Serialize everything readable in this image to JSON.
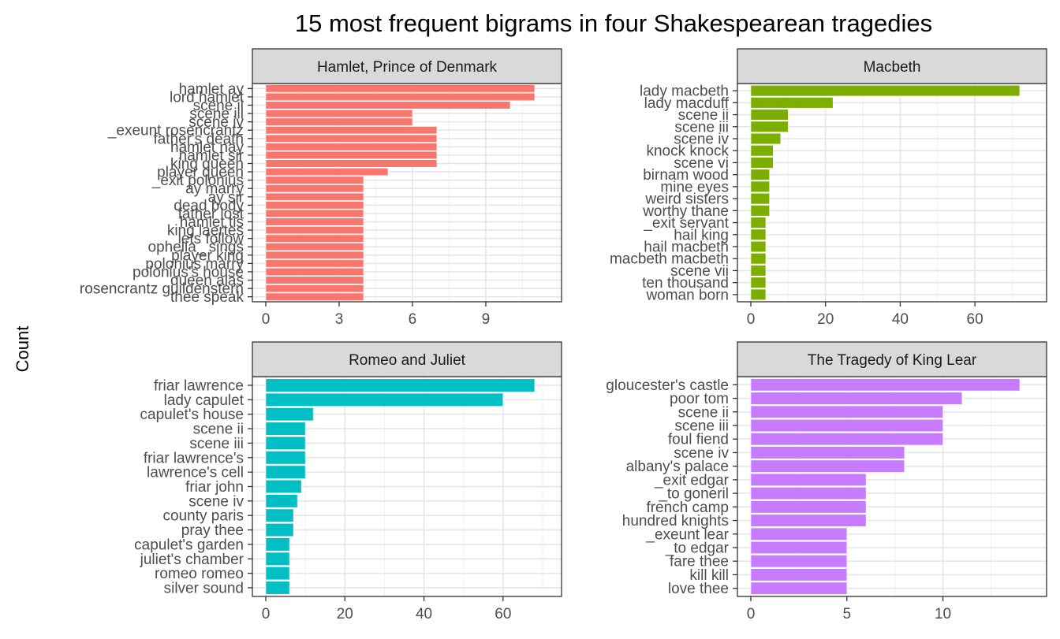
{
  "title": "15 most frequent bigrams in four Shakespearean tragedies",
  "ylabel": "Count",
  "chart_data": [
    {
      "type": "bar",
      "orientation": "horizontal",
      "panel": "Hamlet, Prince of Denmark",
      "color": "#F8766D",
      "xlim": [
        0,
        11.55
      ],
      "xticks": [
        0,
        3,
        6,
        9
      ],
      "categories": [
        "hamlet ay",
        "lord hamlet",
        "scene ii",
        "scene iii",
        "scene iv",
        "_exeunt rosencrantz",
        "father's death",
        "hamlet nay",
        "hamlet sir",
        "king queen",
        "player queen",
        "_exit polonius",
        "ay marry",
        "ay sir",
        "dead body",
        "father lost",
        "hamlet tis",
        "king laertes",
        "lets follow",
        "ophelia_ sings",
        "player king",
        "polonius marry",
        "polonius's house",
        "queen alas",
        "rosencrantz guildenstern",
        "thee speak"
      ],
      "values": [
        11,
        11,
        10,
        6,
        6,
        7,
        7,
        7,
        7,
        7,
        5,
        4,
        4,
        4,
        4,
        4,
        4,
        4,
        4,
        4,
        4,
        4,
        4,
        4,
        4,
        4
      ]
    },
    {
      "type": "bar",
      "orientation": "horizontal",
      "panel": "Macbeth",
      "color": "#7CAE00",
      "xlim": [
        0,
        75.6
      ],
      "xticks": [
        0,
        20,
        40,
        60
      ],
      "categories": [
        "lady macbeth",
        "lady macduff",
        "scene ii",
        "scene iii",
        "scene iv",
        "knock knock",
        "scene vi",
        "birnam wood",
        "mine eyes",
        "weird sisters",
        "worthy thane",
        "_exit servant",
        "hail king",
        "hail macbeth",
        "macbeth macbeth",
        "scene vii",
        "ten thousand",
        "woman born"
      ],
      "values": [
        72,
        22,
        10,
        10,
        8,
        6,
        6,
        5,
        5,
        5,
        5,
        4,
        4,
        4,
        4,
        4,
        4,
        4
      ]
    },
    {
      "type": "bar",
      "orientation": "horizontal",
      "panel": "Romeo and Juliet",
      "color": "#00BFC4",
      "xlim": [
        0,
        71.4
      ],
      "xticks": [
        0,
        20,
        40,
        60
      ],
      "categories": [
        "friar lawrence",
        "lady capulet",
        "capulet's house",
        "scene ii",
        "scene iii",
        "friar lawrence's",
        "lawrence's cell",
        "friar john",
        "scene iv",
        "county paris",
        "pray thee",
        "capulet's garden",
        "juliet's chamber",
        "romeo romeo",
        "silver sound"
      ],
      "values": [
        68,
        60,
        12,
        10,
        10,
        10,
        10,
        9,
        8,
        7,
        7,
        6,
        6,
        6,
        6
      ]
    },
    {
      "type": "bar",
      "orientation": "horizontal",
      "panel": "The Tragedy of King Lear",
      "color": "#C77CFF",
      "xlim": [
        0,
        14.7
      ],
      "xticks": [
        0,
        5,
        10
      ],
      "categories": [
        "gloucester's castle",
        "poor tom",
        "scene ii",
        "scene iii",
        "foul fiend",
        "scene iv",
        "albany's palace",
        "_exit edgar",
        "_to goneril",
        "french camp",
        "hundred knights",
        "_exeunt lear",
        "_to edgar",
        "fare thee",
        "kill kill",
        "love thee"
      ],
      "values": [
        14,
        11,
        10,
        10,
        10,
        8,
        8,
        6,
        6,
        6,
        6,
        5,
        5,
        5,
        5,
        5
      ]
    }
  ]
}
